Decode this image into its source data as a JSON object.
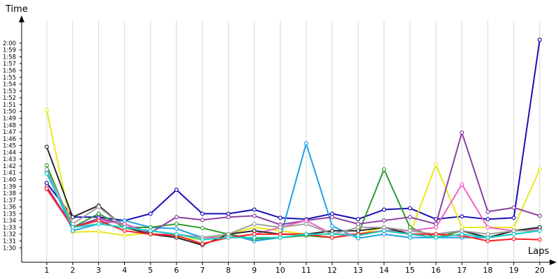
{
  "chart_data": {
    "type": "line",
    "xlabel": "Laps",
    "ylabel": "Time",
    "x": [
      1,
      2,
      3,
      4,
      5,
      6,
      7,
      8,
      9,
      10,
      11,
      12,
      13,
      14,
      15,
      16,
      17,
      18,
      19,
      20
    ],
    "x_ticks": [
      "1",
      "2",
      "3",
      "4",
      "5",
      "6",
      "7",
      "8",
      "9",
      "10",
      "11",
      "12",
      "13",
      "14",
      "15",
      "16",
      "17",
      "18",
      "19",
      "20"
    ],
    "y_ticks": [
      "1:30",
      "1:31",
      "1:32",
      "1:33",
      "1:34",
      "1:35",
      "1:36",
      "1:37",
      "1:38",
      "1:39",
      "1:40",
      "1:41",
      "1:42",
      "1:43",
      "1:44",
      "1:45",
      "1:46",
      "1:47",
      "1:48",
      "1:49",
      "1:50",
      "1:51",
      "1:52",
      "1:53",
      "1:54",
      "1:55",
      "1:56",
      "1:57",
      "1:58",
      "1:59",
      "2:00"
    ],
    "y_unit": "seconds",
    "ylim": [
      89,
      121
    ],
    "grid": "vertical",
    "series": [
      {
        "color": "#1a0fb5",
        "values": [
          99.5,
          94.5,
          94.5,
          94.0,
          95.0,
          98.5,
          95.0,
          95.0,
          95.6,
          94.4,
          94.2,
          95.0,
          94.2,
          95.6,
          95.8,
          94.2,
          94.6,
          94.2,
          94.4,
          120.5
        ]
      },
      {
        "color": "#e8e820",
        "values": [
          110.2,
          92.3,
          92.4,
          91.8,
          92.2,
          91.5,
          91.2,
          92.0,
          93.0,
          92.5,
          92.0,
          92.0,
          92.0,
          93.0,
          92.0,
          102.2,
          93.0,
          93.0,
          93.0,
          101.5
        ]
      },
      {
        "color": "#1fa0e8",
        "values": [
          101.2,
          92.5,
          93.5,
          94.0,
          93.0,
          92.8,
          91.5,
          92.0,
          91.0,
          91.5,
          105.3,
          93.2,
          91.4,
          92.0,
          91.5,
          91.5,
          91.5,
          91.5,
          92.0,
          92.5
        ]
      },
      {
        "color": "#2e9a2e",
        "values": [
          102.1,
          93.0,
          95.0,
          93.0,
          93.0,
          93.5,
          92.9,
          92.0,
          91.3,
          91.5,
          91.8,
          91.5,
          92.0,
          101.5,
          93.0,
          91.5,
          92.5,
          91.5,
          92.5,
          93.0
        ]
      },
      {
        "color": "#8b3fa0",
        "values": [
          99.0,
          93.0,
          94.3,
          93.5,
          92.2,
          94.5,
          94.1,
          94.5,
          94.7,
          93.4,
          94.0,
          94.5,
          93.5,
          94.0,
          94.5,
          93.5,
          106.9,
          95.3,
          95.9,
          94.7
        ]
      },
      {
        "color": "#f060c8",
        "values": [
          98.6,
          93.0,
          94.0,
          93.5,
          92.0,
          92.0,
          91.5,
          91.5,
          92.0,
          93.0,
          94.0,
          92.0,
          92.0,
          92.5,
          92.5,
          93.0,
          99.3,
          93.0,
          92.5,
          92.8
        ]
      },
      {
        "color": "#2a2a2a",
        "values": [
          104.8,
          94.5,
          96.2,
          93.0,
          92.0,
          91.5,
          90.4,
          92.0,
          92.5,
          92.0,
          92.0,
          92.5,
          92.5,
          93.0,
          92.0,
          92.0,
          92.5,
          91.5,
          92.5,
          93.0
        ]
      },
      {
        "color": "#a0a0a0",
        "values": [
          101.5,
          93.5,
          96.0,
          93.0,
          92.5,
          92.0,
          91.5,
          92.0,
          93.5,
          93.0,
          93.5,
          92.0,
          93.0,
          93.0,
          92.5,
          92.0,
          92.5,
          92.0,
          92.5,
          92.5
        ]
      },
      {
        "color": "#ff2020",
        "values": [
          98.7,
          93.0,
          94.0,
          92.5,
          92.0,
          91.8,
          90.6,
          91.5,
          92.0,
          92.0,
          92.0,
          91.5,
          92.0,
          92.5,
          92.0,
          92.0,
          91.8,
          91.0,
          91.3,
          91.2
        ]
      },
      {
        "color": "#18d0c8",
        "values": [
          100.9,
          93.0,
          93.5,
          93.0,
          92.5,
          92.0,
          91.2,
          91.5,
          91.5,
          91.5,
          92.0,
          92.0,
          91.8,
          92.5,
          92.0,
          91.5,
          92.0,
          91.5,
          92.0,
          92.5
        ]
      }
    ]
  }
}
